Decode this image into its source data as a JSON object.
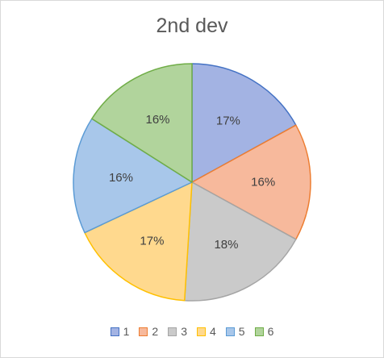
{
  "chart_data": {
    "type": "pie",
    "title": "2nd dev",
    "categories": [
      "1",
      "2",
      "3",
      "4",
      "5",
      "6"
    ],
    "values": [
      17,
      16,
      18,
      17,
      16,
      16
    ],
    "data_labels": [
      "17%",
      "16%",
      "18%",
      "17%",
      "16%",
      "16%"
    ],
    "colors": [
      "#a3b3e3",
      "#f7b99c",
      "#cacaca",
      "#ffd98e",
      "#a8c7ea",
      "#b1d49c"
    ],
    "edge_colors": [
      "#4472c4",
      "#ed7d31",
      "#a5a5a5",
      "#ffc000",
      "#5b9bd5",
      "#70ad47"
    ],
    "legend_position": "bottom"
  }
}
